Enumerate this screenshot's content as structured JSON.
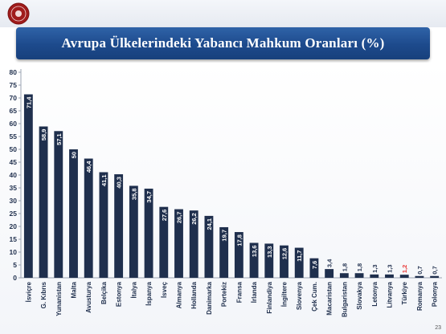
{
  "header": {
    "title": "Avrupa Ülkelerindeki Yabancı Mahkum Oranları (%)",
    "page_number": "23"
  },
  "colors": {
    "title_bar": "#1f4e8f",
    "bar": "#1f2f4d",
    "highlight_value": "#e8312f",
    "logo": "#a01c1c"
  },
  "chart_data": {
    "type": "bar",
    "title": "Avrupa Ülkelerindeki Yabancı Mahkum Oranları (%)",
    "xlabel": "",
    "ylabel": "",
    "ylim": [
      0,
      80
    ],
    "yticks": [
      0,
      5,
      10,
      15,
      20,
      25,
      30,
      35,
      40,
      45,
      50,
      55,
      60,
      65,
      70,
      75,
      80
    ],
    "grid": false,
    "legend": "none",
    "categories": [
      "İsviçre",
      "G. Kıbrıs",
      "Yunanistan",
      "Malta",
      "Avusturya",
      "Belçika",
      "Estonya",
      "İtalya",
      "İspanya",
      "İsveç",
      "Almanya",
      "Hollanda",
      "Danimarka",
      "Portekiz",
      "Fransa",
      "İrlanda",
      "Finlandiya",
      "İngiltere",
      "Slovenya",
      "Çek Cum.",
      "Macaristan",
      "Bulgaristan",
      "Slovakya",
      "Letonya",
      "Litvanya",
      "Türkiye",
      "Romanya",
      "Polonya"
    ],
    "values": [
      71.4,
      58.9,
      57.1,
      50,
      46.4,
      41.1,
      40.3,
      35.8,
      34.7,
      27.6,
      26.7,
      26.2,
      24.1,
      19.7,
      17.8,
      13.6,
      13.3,
      12.6,
      11.7,
      7.6,
      3.4,
      1.8,
      1.8,
      1.3,
      1.3,
      1.2,
      0.7,
      0.7
    ],
    "value_labels": [
      "71,4",
      "58,9",
      "57,1",
      "50",
      "46,4",
      "41,1",
      "40,3",
      "35,8",
      "34,7",
      "27,6",
      "26,7",
      "26,2",
      "24,1",
      "19,7",
      "17,8",
      "13,6",
      "13,3",
      "12,6",
      "11,7",
      "7,6",
      "3,4",
      "1,8",
      "1,8",
      "1,3",
      "1,3",
      "1,2",
      "0,7",
      "0,7"
    ],
    "highlight_category": "Türkiye"
  }
}
